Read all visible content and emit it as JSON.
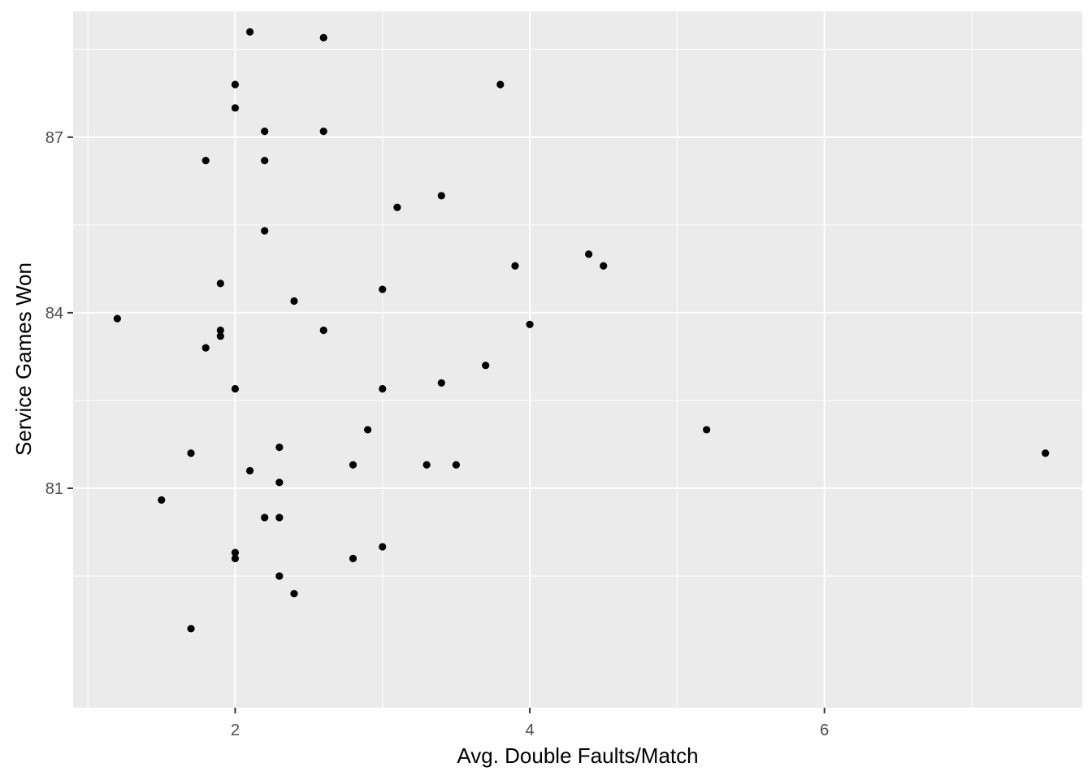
{
  "chart_data": {
    "type": "scatter",
    "title": "",
    "xlabel": "Avg. Double Faults/Match",
    "ylabel": "Service Games Won",
    "xlim": [
      0.9,
      7.75
    ],
    "ylim": [
      77.25,
      89.15
    ],
    "x_major_ticks": [
      2,
      4,
      6
    ],
    "x_minor_ticks": [
      1,
      3,
      5,
      7
    ],
    "y_major_ticks": [
      81,
      84,
      87
    ],
    "y_minor_ticks": [
      79.5,
      82.5,
      85.5,
      88.5
    ],
    "x_tick_labels": [
      "2",
      "4",
      "6"
    ],
    "y_tick_labels": [
      "81",
      "84",
      "87"
    ],
    "grid": true,
    "colors": {
      "panel": "#ebebeb",
      "grid": "#ffffff",
      "point": "#000000"
    },
    "points": [
      {
        "x": 2.1,
        "y": 88.8
      },
      {
        "x": 2.6,
        "y": 88.7
      },
      {
        "x": 2.0,
        "y": 87.9
      },
      {
        "x": 3.8,
        "y": 87.9
      },
      {
        "x": 2.0,
        "y": 87.5
      },
      {
        "x": 2.2,
        "y": 87.1
      },
      {
        "x": 2.6,
        "y": 87.1
      },
      {
        "x": 1.8,
        "y": 86.6
      },
      {
        "x": 2.2,
        "y": 86.6
      },
      {
        "x": 3.4,
        "y": 86.0
      },
      {
        "x": 3.1,
        "y": 85.8
      },
      {
        "x": 2.2,
        "y": 85.4
      },
      {
        "x": 4.4,
        "y": 85.0
      },
      {
        "x": 3.9,
        "y": 84.8
      },
      {
        "x": 4.5,
        "y": 84.8
      },
      {
        "x": 1.9,
        "y": 84.5
      },
      {
        "x": 3.0,
        "y": 84.4
      },
      {
        "x": 2.4,
        "y": 84.2
      },
      {
        "x": 1.2,
        "y": 83.9
      },
      {
        "x": 4.0,
        "y": 83.8
      },
      {
        "x": 1.9,
        "y": 83.7
      },
      {
        "x": 2.6,
        "y": 83.7
      },
      {
        "x": 1.9,
        "y": 83.6
      },
      {
        "x": 1.8,
        "y": 83.4
      },
      {
        "x": 3.7,
        "y": 83.1
      },
      {
        "x": 3.4,
        "y": 82.8
      },
      {
        "x": 2.0,
        "y": 82.7
      },
      {
        "x": 3.0,
        "y": 82.7
      },
      {
        "x": 2.9,
        "y": 82.0
      },
      {
        "x": 5.2,
        "y": 82.0
      },
      {
        "x": 2.3,
        "y": 81.7
      },
      {
        "x": 1.7,
        "y": 81.6
      },
      {
        "x": 7.5,
        "y": 81.6
      },
      {
        "x": 2.8,
        "y": 81.4
      },
      {
        "x": 3.3,
        "y": 81.4
      },
      {
        "x": 3.5,
        "y": 81.4
      },
      {
        "x": 2.1,
        "y": 81.3
      },
      {
        "x": 2.3,
        "y": 81.1
      },
      {
        "x": 1.5,
        "y": 80.8
      },
      {
        "x": 2.2,
        "y": 80.5
      },
      {
        "x": 2.3,
        "y": 80.5
      },
      {
        "x": 3.0,
        "y": 80.0
      },
      {
        "x": 2.0,
        "y": 79.9
      },
      {
        "x": 2.0,
        "y": 79.8
      },
      {
        "x": 2.8,
        "y": 79.8
      },
      {
        "x": 2.3,
        "y": 79.5
      },
      {
        "x": 2.4,
        "y": 79.2
      },
      {
        "x": 1.7,
        "y": 78.6
      }
    ]
  }
}
